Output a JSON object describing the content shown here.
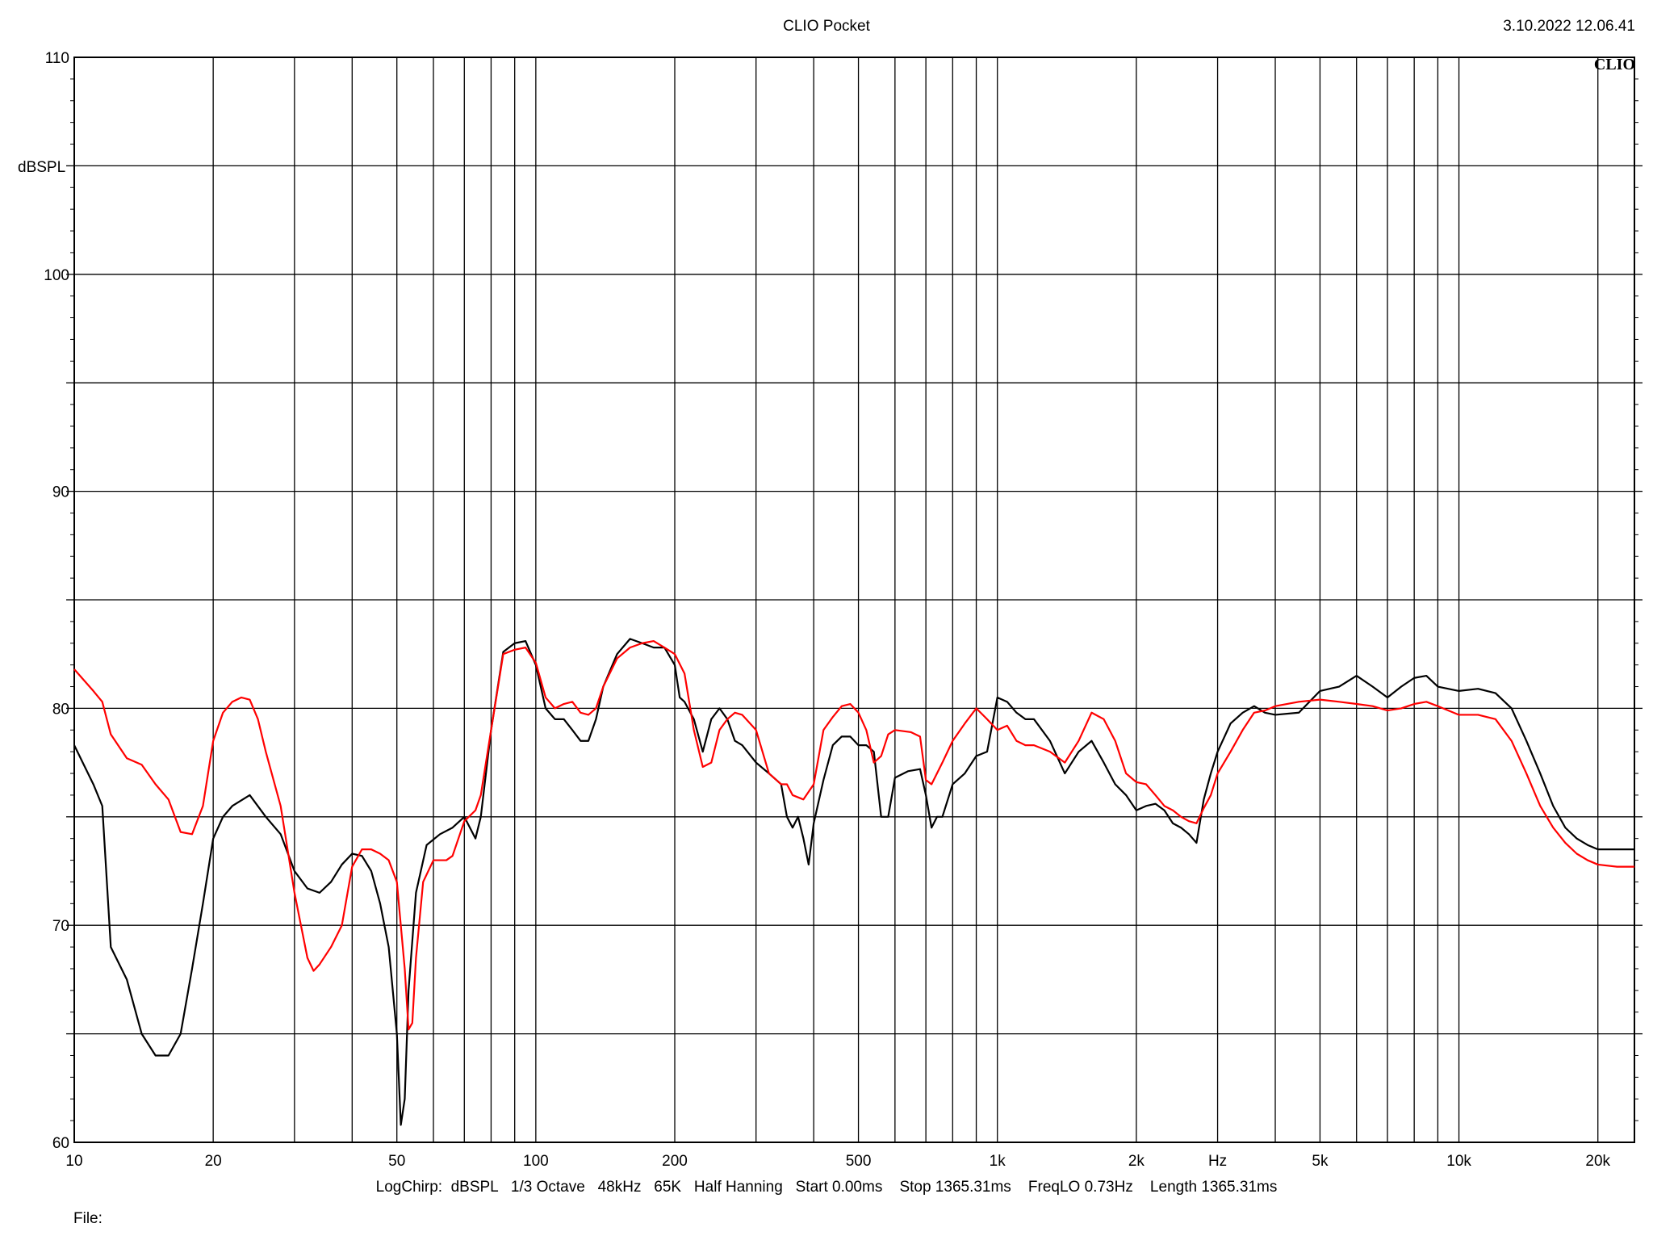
{
  "header": {
    "title": "CLIO Pocket",
    "timestamp": "3.10.2022 12.06.41",
    "brand": "CLIO"
  },
  "footer": {
    "settings": "LogChirp:  dBSPL   1/3 Octave   48kHz   65K   Half Hanning   Start 0.00ms    Stop 1365.31ms    FreqLO 0.73Hz    Length 1365.31ms",
    "file_label": "File:"
  },
  "colors": {
    "background": "#ffffff",
    "grid": "#000000",
    "series_black": "#000000",
    "series_red": "#ff0000"
  },
  "chart_data": {
    "type": "line",
    "title": "CLIO Pocket",
    "xlabel": "Hz",
    "ylabel": "dBSPL",
    "x_scale": "log",
    "xlim": [
      10,
      24000
    ],
    "ylim": [
      60,
      110
    ],
    "grid": true,
    "x_tick_labels": [
      {
        "value": 10,
        "label": "10"
      },
      {
        "value": 20,
        "label": "20"
      },
      {
        "value": 50,
        "label": "50"
      },
      {
        "value": 100,
        "label": "100"
      },
      {
        "value": 200,
        "label": "200"
      },
      {
        "value": 500,
        "label": "500"
      },
      {
        "value": 1000,
        "label": "1k"
      },
      {
        "value": 2000,
        "label": "2k"
      },
      {
        "value": 5000,
        "label": "5k"
      },
      {
        "value": 10000,
        "label": "10k"
      },
      {
        "value": 20000,
        "label": "20k"
      }
    ],
    "x_unit_label": {
      "value": 3000,
      "label": "Hz"
    },
    "y_ticks": [
      60,
      70,
      80,
      90,
      100,
      110
    ],
    "series": [
      {
        "color": "#000000",
        "points": [
          [
            10,
            78.3
          ],
          [
            11,
            76.5
          ],
          [
            11.5,
            75.5
          ],
          [
            12,
            69
          ],
          [
            13,
            67.5
          ],
          [
            14,
            65
          ],
          [
            15,
            64
          ],
          [
            16,
            64
          ],
          [
            17,
            65
          ],
          [
            18,
            68
          ],
          [
            19,
            71
          ],
          [
            20,
            74
          ],
          [
            21,
            75
          ],
          [
            22,
            75.5
          ],
          [
            24,
            76
          ],
          [
            26,
            75
          ],
          [
            28,
            74.2
          ],
          [
            30,
            72.5
          ],
          [
            32,
            71.7
          ],
          [
            34,
            71.5
          ],
          [
            36,
            72
          ],
          [
            38,
            72.8
          ],
          [
            40,
            73.3
          ],
          [
            42,
            73.2
          ],
          [
            44,
            72.5
          ],
          [
            46,
            71
          ],
          [
            48,
            69
          ],
          [
            50,
            65
          ],
          [
            51,
            60.8
          ],
          [
            52,
            62
          ],
          [
            53,
            67
          ],
          [
            55,
            71.5
          ],
          [
            58,
            73.7
          ],
          [
            62,
            74.2
          ],
          [
            66,
            74.5
          ],
          [
            70,
            75
          ],
          [
            74,
            74
          ],
          [
            76,
            75
          ],
          [
            80,
            79
          ],
          [
            85,
            82.6
          ],
          [
            90,
            83
          ],
          [
            95,
            83.1
          ],
          [
            100,
            82
          ],
          [
            105,
            80
          ],
          [
            110,
            79.5
          ],
          [
            115,
            79.5
          ],
          [
            120,
            79
          ],
          [
            125,
            78.5
          ],
          [
            130,
            78.5
          ],
          [
            135,
            79.5
          ],
          [
            140,
            81
          ],
          [
            150,
            82.5
          ],
          [
            160,
            83.2
          ],
          [
            170,
            83
          ],
          [
            180,
            82.8
          ],
          [
            190,
            82.8
          ],
          [
            200,
            82
          ],
          [
            205,
            80.5
          ],
          [
            210,
            80.3
          ],
          [
            220,
            79.5
          ],
          [
            230,
            78
          ],
          [
            240,
            79.5
          ],
          [
            250,
            80
          ],
          [
            260,
            79.5
          ],
          [
            270,
            78.5
          ],
          [
            280,
            78.3
          ],
          [
            300,
            77.5
          ],
          [
            320,
            77
          ],
          [
            340,
            76.5
          ],
          [
            350,
            75
          ],
          [
            360,
            74.5
          ],
          [
            370,
            75
          ],
          [
            380,
            74
          ],
          [
            390,
            72.8
          ],
          [
            400,
            74.7
          ],
          [
            420,
            76.7
          ],
          [
            440,
            78.3
          ],
          [
            460,
            78.7
          ],
          [
            480,
            78.7
          ],
          [
            500,
            78.3
          ],
          [
            520,
            78.3
          ],
          [
            540,
            78
          ],
          [
            560,
            75
          ],
          [
            580,
            75
          ],
          [
            600,
            76.8
          ],
          [
            640,
            77.1
          ],
          [
            680,
            77.2
          ],
          [
            700,
            76
          ],
          [
            720,
            74.5
          ],
          [
            740,
            75
          ],
          [
            760,
            75
          ],
          [
            800,
            76.5
          ],
          [
            850,
            77
          ],
          [
            900,
            77.8
          ],
          [
            950,
            78
          ],
          [
            1000,
            80.5
          ],
          [
            1050,
            80.3
          ],
          [
            1100,
            79.8
          ],
          [
            1150,
            79.5
          ],
          [
            1200,
            79.5
          ],
          [
            1300,
            78.5
          ],
          [
            1400,
            77
          ],
          [
            1500,
            78
          ],
          [
            1600,
            78.5
          ],
          [
            1700,
            77.5
          ],
          [
            1800,
            76.5
          ],
          [
            1900,
            76
          ],
          [
            2000,
            75.3
          ],
          [
            2100,
            75.5
          ],
          [
            2200,
            75.6
          ],
          [
            2300,
            75.3
          ],
          [
            2400,
            74.7
          ],
          [
            2500,
            74.5
          ],
          [
            2600,
            74.2
          ],
          [
            2700,
            73.8
          ],
          [
            2800,
            75.8
          ],
          [
            2900,
            77
          ],
          [
            3000,
            78
          ],
          [
            3200,
            79.3
          ],
          [
            3400,
            79.8
          ],
          [
            3600,
            80.1
          ],
          [
            3800,
            79.8
          ],
          [
            4000,
            79.7
          ],
          [
            4500,
            79.8
          ],
          [
            5000,
            80.8
          ],
          [
            5500,
            81
          ],
          [
            6000,
            81.5
          ],
          [
            6500,
            81
          ],
          [
            7000,
            80.5
          ],
          [
            7500,
            81
          ],
          [
            8000,
            81.4
          ],
          [
            8500,
            81.5
          ],
          [
            9000,
            81
          ],
          [
            10000,
            80.8
          ],
          [
            11000,
            80.9
          ],
          [
            12000,
            80.7
          ],
          [
            13000,
            80
          ],
          [
            14000,
            78.5
          ],
          [
            15000,
            77
          ],
          [
            16000,
            75.5
          ],
          [
            17000,
            74.5
          ],
          [
            18000,
            74
          ],
          [
            19000,
            73.7
          ],
          [
            20000,
            73.5
          ],
          [
            22000,
            73.5
          ],
          [
            24000,
            73.5
          ]
        ]
      },
      {
        "color": "#ff0000",
        "points": [
          [
            10,
            81.8
          ],
          [
            11,
            80.8
          ],
          [
            11.5,
            80.3
          ],
          [
            12,
            78.8
          ],
          [
            13,
            77.7
          ],
          [
            14,
            77.4
          ],
          [
            15,
            76.5
          ],
          [
            16,
            75.8
          ],
          [
            17,
            74.3
          ],
          [
            18,
            74.2
          ],
          [
            19,
            75.5
          ],
          [
            20,
            78.5
          ],
          [
            21,
            79.8
          ],
          [
            22,
            80.3
          ],
          [
            23,
            80.5
          ],
          [
            24,
            80.4
          ],
          [
            25,
            79.5
          ],
          [
            26,
            78
          ],
          [
            28,
            75.5
          ],
          [
            30,
            71.5
          ],
          [
            32,
            68.5
          ],
          [
            33,
            67.9
          ],
          [
            34,
            68.2
          ],
          [
            36,
            69
          ],
          [
            38,
            70
          ],
          [
            40,
            72.7
          ],
          [
            42,
            73.5
          ],
          [
            44,
            73.5
          ],
          [
            46,
            73.3
          ],
          [
            48,
            73
          ],
          [
            50,
            72
          ],
          [
            52,
            68
          ],
          [
            53,
            65.2
          ],
          [
            54,
            65.5
          ],
          [
            55,
            68.5
          ],
          [
            57,
            72
          ],
          [
            60,
            73
          ],
          [
            64,
            73
          ],
          [
            66,
            73.2
          ],
          [
            70,
            74.8
          ],
          [
            74,
            75.3
          ],
          [
            76,
            76
          ],
          [
            80,
            79
          ],
          [
            85,
            82.5
          ],
          [
            90,
            82.7
          ],
          [
            95,
            82.8
          ],
          [
            100,
            82.1
          ],
          [
            105,
            80.5
          ],
          [
            110,
            80
          ],
          [
            115,
            80.2
          ],
          [
            120,
            80.3
          ],
          [
            125,
            79.8
          ],
          [
            130,
            79.7
          ],
          [
            135,
            80
          ],
          [
            140,
            81
          ],
          [
            150,
            82.3
          ],
          [
            160,
            82.8
          ],
          [
            170,
            83
          ],
          [
            180,
            83.1
          ],
          [
            190,
            82.8
          ],
          [
            200,
            82.5
          ],
          [
            210,
            81.6
          ],
          [
            220,
            79
          ],
          [
            230,
            77.3
          ],
          [
            240,
            77.5
          ],
          [
            250,
            79
          ],
          [
            260,
            79.5
          ],
          [
            270,
            79.8
          ],
          [
            280,
            79.7
          ],
          [
            300,
            79
          ],
          [
            320,
            77
          ],
          [
            340,
            76.5
          ],
          [
            350,
            76.5
          ],
          [
            360,
            76
          ],
          [
            380,
            75.8
          ],
          [
            400,
            76.5
          ],
          [
            420,
            79
          ],
          [
            440,
            79.6
          ],
          [
            460,
            80.1
          ],
          [
            480,
            80.2
          ],
          [
            500,
            79.8
          ],
          [
            520,
            79
          ],
          [
            540,
            77.5
          ],
          [
            560,
            77.8
          ],
          [
            580,
            78.8
          ],
          [
            600,
            79
          ],
          [
            650,
            78.9
          ],
          [
            680,
            78.7
          ],
          [
            700,
            76.7
          ],
          [
            720,
            76.5
          ],
          [
            760,
            77.5
          ],
          [
            800,
            78.5
          ],
          [
            850,
            79.3
          ],
          [
            900,
            80
          ],
          [
            950,
            79.5
          ],
          [
            1000,
            79
          ],
          [
            1050,
            79.2
          ],
          [
            1100,
            78.5
          ],
          [
            1150,
            78.3
          ],
          [
            1200,
            78.3
          ],
          [
            1300,
            78
          ],
          [
            1400,
            77.5
          ],
          [
            1500,
            78.5
          ],
          [
            1600,
            79.8
          ],
          [
            1700,
            79.5
          ],
          [
            1800,
            78.5
          ],
          [
            1900,
            77
          ],
          [
            2000,
            76.6
          ],
          [
            2100,
            76.5
          ],
          [
            2200,
            76
          ],
          [
            2300,
            75.5
          ],
          [
            2400,
            75.3
          ],
          [
            2500,
            75
          ],
          [
            2600,
            74.8
          ],
          [
            2700,
            74.7
          ],
          [
            2800,
            75.4
          ],
          [
            2900,
            76
          ],
          [
            3000,
            77
          ],
          [
            3200,
            78
          ],
          [
            3400,
            79
          ],
          [
            3600,
            79.8
          ],
          [
            3800,
            79.9
          ],
          [
            4000,
            80.1
          ],
          [
            4500,
            80.3
          ],
          [
            5000,
            80.4
          ],
          [
            5500,
            80.3
          ],
          [
            6000,
            80.2
          ],
          [
            6500,
            80.1
          ],
          [
            7000,
            79.9
          ],
          [
            7500,
            80
          ],
          [
            8000,
            80.2
          ],
          [
            8500,
            80.3
          ],
          [
            9000,
            80.1
          ],
          [
            10000,
            79.7
          ],
          [
            11000,
            79.7
          ],
          [
            12000,
            79.5
          ],
          [
            13000,
            78.5
          ],
          [
            14000,
            77
          ],
          [
            15000,
            75.5
          ],
          [
            16000,
            74.5
          ],
          [
            17000,
            73.8
          ],
          [
            18000,
            73.3
          ],
          [
            19000,
            73
          ],
          [
            20000,
            72.8
          ],
          [
            22000,
            72.7
          ],
          [
            24000,
            72.7
          ]
        ]
      }
    ]
  }
}
